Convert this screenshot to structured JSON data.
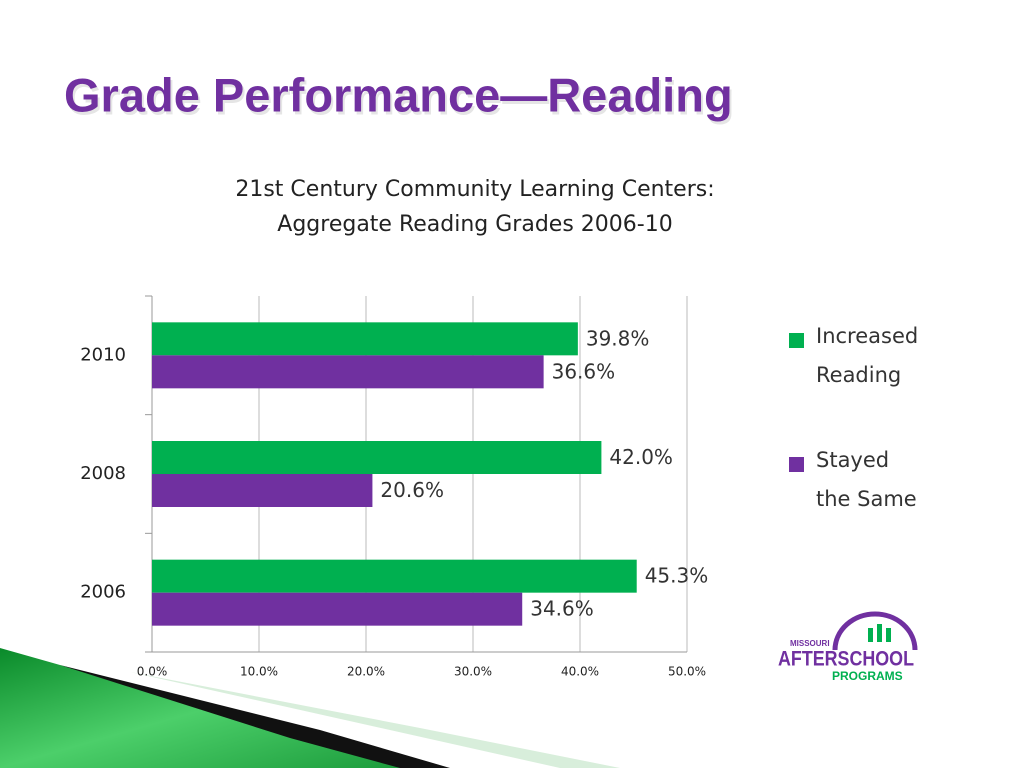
{
  "slide": {
    "title": "Grade Performance—Reading"
  },
  "chart_data": {
    "type": "hbar",
    "title": [
      "21st Century Community  Learning Centers:",
      "Aggregate Reading Grades 2006-10"
    ],
    "categories": [
      "2010",
      "2008",
      "2006"
    ],
    "series": [
      {
        "name": "Increased Reading",
        "color": "#00b050",
        "values": [
          39.8,
          42.0,
          45.3
        ],
        "value_labels": [
          "39.8%",
          "42.0%",
          "45.3%"
        ]
      },
      {
        "name": "Stayed the Same",
        "color": "#7030a0",
        "values": [
          36.6,
          20.6,
          34.6
        ],
        "value_labels": [
          "36.6%",
          "20.6%",
          "34.6%"
        ]
      }
    ],
    "xlim": [
      0,
      50
    ],
    "xticks": [
      {
        "value": 0,
        "label": "0.0%"
      },
      {
        "value": 10,
        "label": "10.0%"
      },
      {
        "value": 20,
        "label": "20.0%"
      },
      {
        "value": 30,
        "label": "30.0%"
      },
      {
        "value": 40,
        "label": "40.0%"
      },
      {
        "value": 50,
        "label": "50.0%"
      }
    ],
    "grid": true,
    "legend": "right"
  },
  "logo": {
    "top": "MISSOURI",
    "main": "AFTERSCHOOL",
    "bottom": "PROGRAMS"
  }
}
